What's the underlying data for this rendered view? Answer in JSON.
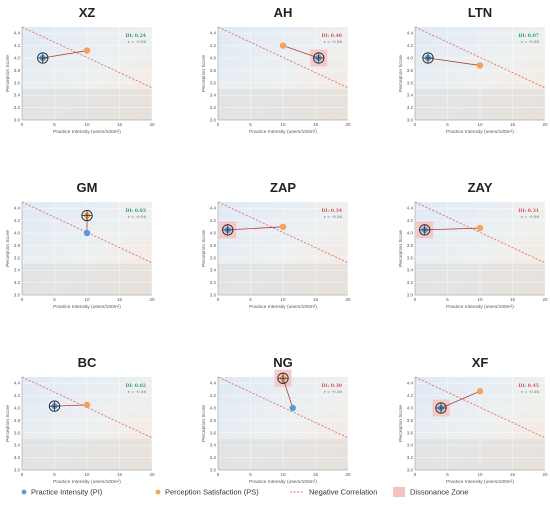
{
  "chart_data": {
    "type": "scatter",
    "x_label": "Practice Intensity (users/100m²)",
    "y_label": "Perception Score",
    "x_ticks": [
      "0",
      "5",
      "10",
      "15",
      "20"
    ],
    "y_ticks": [
      "3.0",
      "3.2",
      "3.4",
      "3.6",
      "3.8",
      "4.0",
      "4.2",
      "4.4"
    ],
    "xlim": [
      0,
      20
    ],
    "ylim": [
      3.0,
      4.5
    ],
    "negative_correlation_r": "r = -0.56",
    "panels": [
      {
        "name": "XZ",
        "pi": [
          3.2,
          4.0
        ],
        "ps": [
          10.0,
          4.12
        ],
        "di": "DI: 0.24",
        "di_color": "#2ca25f",
        "marked": "pi",
        "zone": false
      },
      {
        "name": "AH",
        "pi": [
          15.5,
          4.0
        ],
        "ps": [
          10.0,
          4.2
        ],
        "di": "DI: 0.48",
        "di_color": "#d9534f",
        "marked": "pi",
        "zone": true
      },
      {
        "name": "LTN",
        "pi": [
          2.0,
          4.0
        ],
        "ps": [
          10.0,
          3.88
        ],
        "di": "DI: 0.07",
        "di_color": "#2ca25f",
        "marked": "pi",
        "zone": false
      },
      {
        "name": "GM",
        "pi": [
          10.0,
          4.0
        ],
        "ps": [
          10.0,
          4.28
        ],
        "di": "DI: 0.03",
        "di_color": "#2ca25f",
        "marked": "ps",
        "zone": false
      },
      {
        "name": "ZAP",
        "pi": [
          1.5,
          4.05
        ],
        "ps": [
          10.0,
          4.1
        ],
        "di": "DI: 0.34",
        "di_color": "#d9534f",
        "marked": "pi",
        "zone": true
      },
      {
        "name": "ZAY",
        "pi": [
          1.5,
          4.05
        ],
        "ps": [
          10.0,
          4.08
        ],
        "di": "DI: 0.31",
        "di_color": "#d9534f",
        "marked": "pi",
        "zone": true
      },
      {
        "name": "BC",
        "pi": [
          5.0,
          4.03
        ],
        "ps": [
          10.0,
          4.05
        ],
        "di": "DI: 0.02",
        "di_color": "#2ca25f",
        "marked": "pi",
        "zone": false
      },
      {
        "name": "NG",
        "pi": [
          11.5,
          4.0
        ],
        "ps": [
          10.0,
          4.48
        ],
        "di": "DI: 0.30",
        "di_color": "#d9534f",
        "marked": "ps",
        "zone": true
      },
      {
        "name": "XF",
        "pi": [
          4.0,
          4.0
        ],
        "ps": [
          10.0,
          4.27
        ],
        "di": "DI: 0.45",
        "di_color": "#d9534f",
        "marked": "pi",
        "zone": true
      }
    ],
    "legend": [
      {
        "label": "Practice Intensity (PI)",
        "kind": "pi-dot"
      },
      {
        "label": "Perception Satisfaction (PS)",
        "kind": "ps-dot"
      },
      {
        "label": "Negative Correlation",
        "kind": "dashed-line"
      },
      {
        "label": "Dissonance Zone",
        "kind": "zone-box"
      }
    ]
  },
  "colors": {
    "pi": "#5b9bd5",
    "ps": "#f4a25a",
    "correlation": "#e57373",
    "connector": "#b0413e",
    "zone": "#f4c2c2"
  }
}
